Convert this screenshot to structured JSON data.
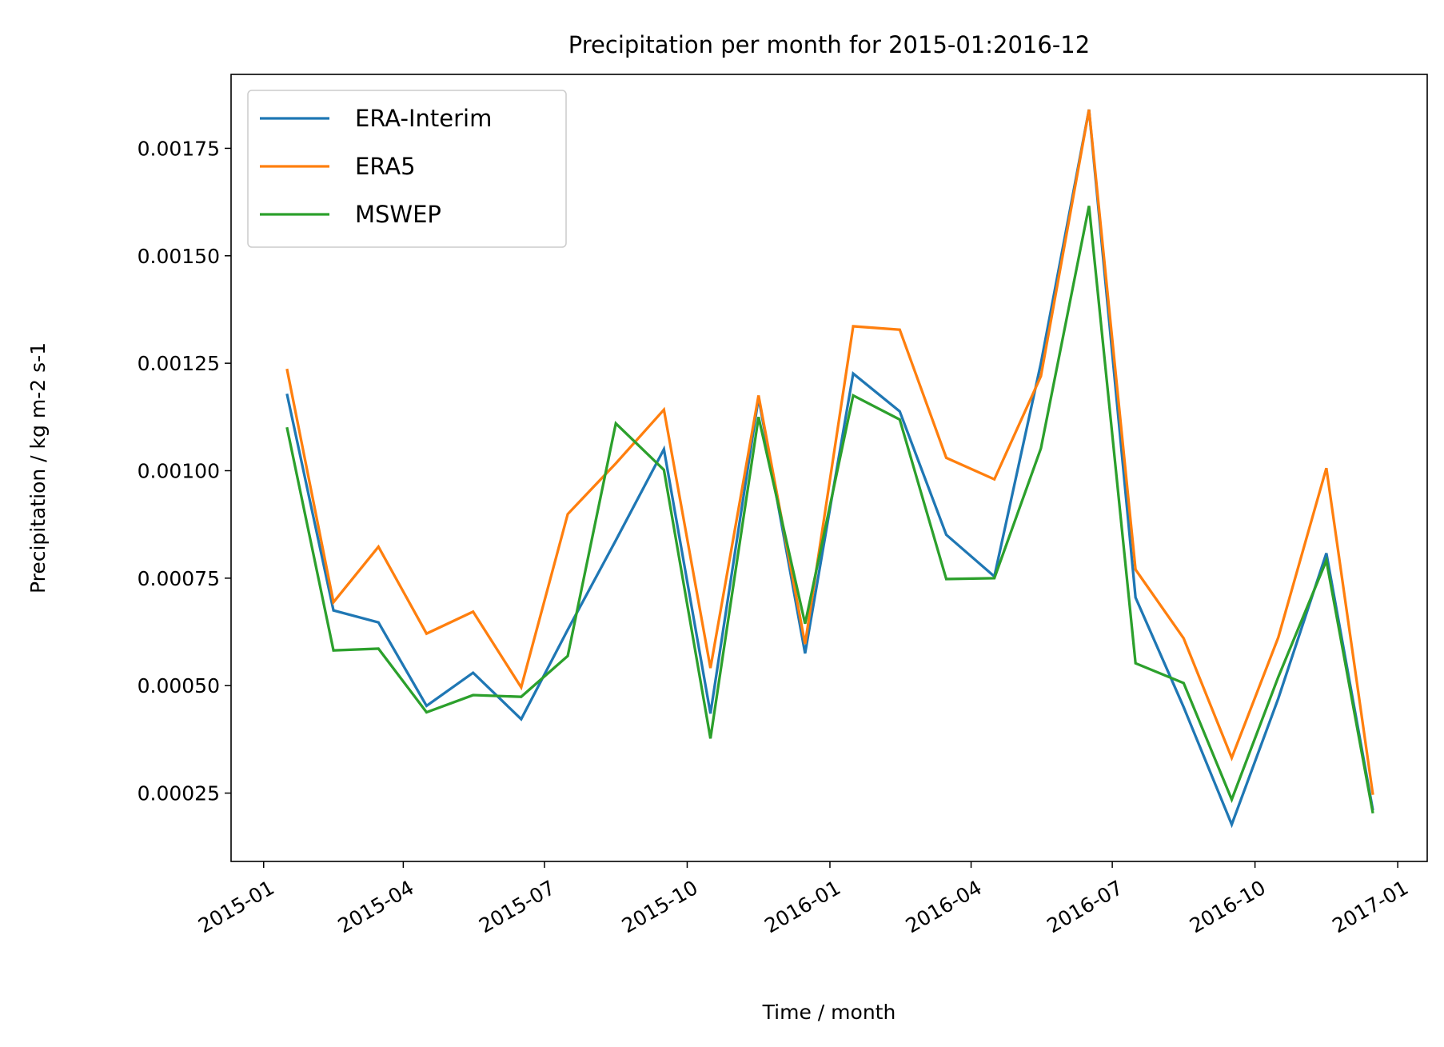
{
  "chart_data": {
    "type": "line",
    "title": "Precipitation per month for 2015-01:2016-12",
    "xlabel": "Time / month",
    "ylabel": "Precipitation / kg m-2 s-1",
    "xlim": [
      "2014-12-11",
      "2017-01-20"
    ],
    "ylim": [
      9.1e-05,
      0.001922
    ],
    "grid": false,
    "legend_position": "top-left",
    "x_tick_labels": [
      "2015-01",
      "2015-04",
      "2015-07",
      "2015-10",
      "2016-01",
      "2016-04",
      "2016-07",
      "2016-10",
      "2017-01"
    ],
    "y_ticks": [
      0.00025,
      0.0005,
      0.00075,
      0.001,
      0.00125,
      0.0015,
      0.00175
    ],
    "y_tick_labels": [
      "0.00025",
      "0.00050",
      "0.00075",
      "0.00100",
      "0.00125",
      "0.00150",
      "0.00175"
    ],
    "x": [
      "2015-01-16",
      "2015-02-15",
      "2015-03-16",
      "2015-04-16",
      "2015-05-16",
      "2015-06-16",
      "2015-07-16",
      "2015-08-16",
      "2015-09-16",
      "2015-10-16",
      "2015-11-16",
      "2015-12-16",
      "2016-01-16",
      "2016-02-15",
      "2016-03-16",
      "2016-04-16",
      "2016-05-16",
      "2016-06-16",
      "2016-07-16",
      "2016-08-16",
      "2016-09-16",
      "2016-10-16",
      "2016-11-16",
      "2016-12-16"
    ],
    "series": [
      {
        "name": "ERA-Interim",
        "color": "#1f77b4",
        "values": [
          0.001179,
          0.000675,
          0.000647,
          0.000453,
          0.00053,
          0.000422,
          0.00063,
          0.000838,
          0.00105,
          0.000435,
          0.00117,
          0.000575,
          0.001226,
          0.001138,
          0.000851,
          0.000754,
          0.00125,
          0.00184,
          0.000705,
          0.00045,
          0.000177,
          0.00047,
          0.000808,
          0.00021
        ]
      },
      {
        "name": "ERA5",
        "color": "#ff7f0e",
        "values": [
          0.001237,
          0.000694,
          0.000823,
          0.000621,
          0.000672,
          0.000496,
          0.000899,
          0.001017,
          0.001142,
          0.000541,
          0.001175,
          0.000597,
          0.001336,
          0.001328,
          0.00103,
          0.00098,
          0.00122,
          0.00184,
          0.00077,
          0.00061,
          0.000332,
          0.000612,
          0.001006,
          0.000246
        ]
      },
      {
        "name": "MSWEP",
        "color": "#2ca02c",
        "values": [
          0.001101,
          0.000582,
          0.000586,
          0.000438,
          0.000478,
          0.000474,
          0.000569,
          0.00111,
          0.001002,
          0.000377,
          0.001125,
          0.000644,
          0.001175,
          0.001119,
          0.000748,
          0.00075,
          0.001052,
          0.001616,
          0.000552,
          0.000506,
          0.000235,
          0.00052,
          0.000791,
          0.000203
        ]
      }
    ]
  }
}
